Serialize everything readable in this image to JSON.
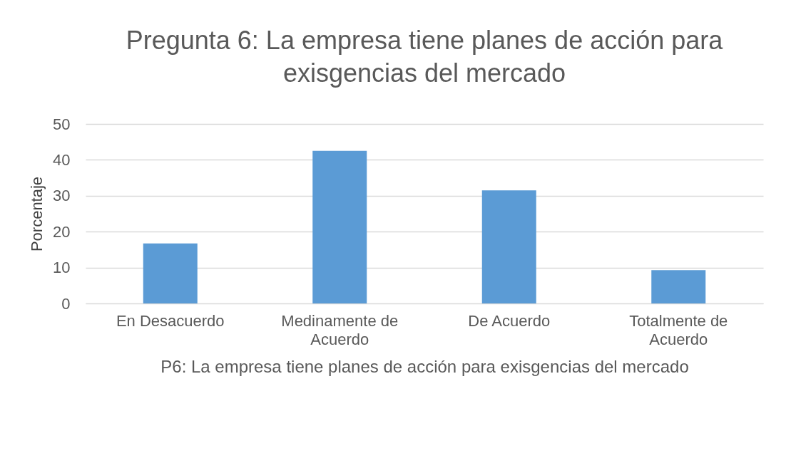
{
  "chart_data": {
    "type": "bar",
    "title": "Pregunta 6: La empresa tiene planes de acción para exisgencias del mercado",
    "xlabel": "P6: La empresa tiene planes de acción para exisgencias del mercado",
    "ylabel": "Porcentaje",
    "categories": [
      "En Desacuerdo",
      "Medinamente de Acuerdo",
      "De Acuerdo",
      "Totalmente de Acuerdo"
    ],
    "values": [
      16.7,
      42.5,
      31.5,
      9.3
    ],
    "color": "#5b9bd5",
    "ylim": [
      0,
      50
    ],
    "yticks": [
      0,
      10,
      20,
      30,
      40,
      50
    ],
    "grid": "y"
  }
}
